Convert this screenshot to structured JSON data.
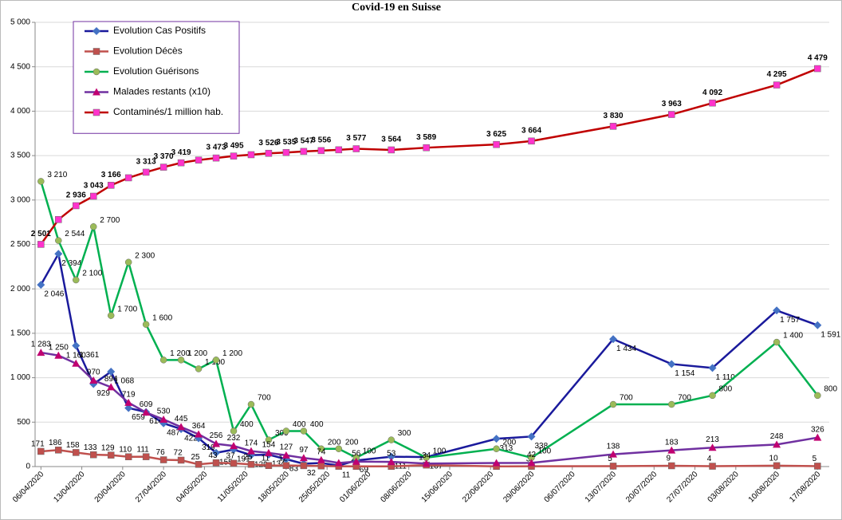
{
  "chart_data": {
    "type": "line",
    "title": "Covid-19 en Suisse",
    "x": [
      "06/04/2020",
      "09/04/2020",
      "12/04/2020",
      "15/04/2020",
      "18/04/2020",
      "21/04/2020",
      "24/04/2020",
      "27/04/2020",
      "30/04/2020",
      "03/05/2020",
      "06/05/2020",
      "09/05/2020",
      "12/05/2020",
      "15/05/2020",
      "18/05/2020",
      "21/05/2020",
      "24/05/2020",
      "27/05/2020",
      "30/05/2020",
      "05/06/2020",
      "11/06/2020",
      "23/06/2020",
      "29/06/2020",
      "13/07/2020",
      "23/07/2020",
      "30/07/2020",
      "10/08/2020",
      "17/08/2020"
    ],
    "series": [
      {
        "name": "Evolution Cas Positifs",
        "color": "#1a1a9c",
        "marker": "diamond",
        "marker_color": "#4472c4",
        "values": [
          2046,
          2394,
          1361,
          929,
          1068,
          659,
          614,
          487,
          422,
          319,
          155,
          191,
          129,
          134,
          83,
          32,
          40,
          11,
          69,
          111,
          107,
          313,
          338,
          1434,
          1154,
          1110,
          1757,
          1591
        ],
        "value_labels": [
          "2 046",
          "2 394",
          "1 361",
          "929",
          "1 068",
          "659",
          "614",
          "487",
          "422",
          "319",
          "155",
          "191",
          "129",
          "134",
          "83",
          "32",
          null,
          "11",
          "69",
          "111",
          "107",
          "313",
          "338",
          "1 434",
          "1 154",
          "1 110",
          "1 757",
          "1 591"
        ]
      },
      {
        "name": "Evolution Décès",
        "color": "#c0504d",
        "marker": "square",
        "marker_color": "#c0504d",
        "values": [
          171,
          186,
          158,
          133,
          129,
          110,
          111,
          76,
          72,
          25,
          43,
          37,
          25,
          11,
          12,
          10,
          7,
          3,
          2,
          2,
          17,
          2,
          3,
          5,
          9,
          4,
          10,
          5
        ],
        "value_labels": [
          "171",
          "186",
          "158",
          "133",
          "129",
          "110",
          "111",
          "76",
          "72",
          "25",
          "43",
          "37",
          "25",
          "11",
          "12",
          null,
          null,
          null,
          "2",
          null,
          "17",
          null,
          "3",
          "5",
          "9",
          "4",
          "10",
          "5"
        ]
      },
      {
        "name": "Evolution Guérisons",
        "color": "#00b050",
        "marker": "circle",
        "marker_color": "#9bbb59",
        "values": [
          3210,
          2544,
          2100,
          2700,
          1700,
          2300,
          1600,
          1200,
          1200,
          1100,
          1200,
          400,
          700,
          300,
          400,
          400,
          200,
          200,
          100,
          300,
          100,
          200,
          100,
          700,
          700,
          800,
          1400,
          800
        ],
        "value_labels": [
          "3 210",
          "2 544",
          "2 100",
          "2 700",
          "1 700",
          "2 300",
          "1 600",
          "1 200",
          "1 200",
          "1 100",
          "1 200",
          "400",
          "700",
          "300",
          "400",
          "400",
          "200",
          "200",
          "100",
          "300",
          "100",
          "200",
          "100",
          "700",
          "700",
          "800",
          "1 400",
          "800"
        ]
      },
      {
        "name": "Malades restants (x10)",
        "color": "#7030a0",
        "marker": "triangle",
        "marker_color": "#c00070",
        "label_color": "#c00000",
        "values": [
          1283,
          1250,
          1160,
          970,
          894,
          719,
          609,
          530,
          445,
          364,
          256,
          232,
          174,
          154,
          127,
          97,
          74,
          40,
          56,
          53,
          34,
          40,
          42,
          138,
          183,
          213,
          248,
          326
        ],
        "value_labels": [
          "1 283",
          "1 250",
          "1 160",
          "970",
          "894",
          "719",
          "609",
          "530",
          "445",
          "364",
          "256",
          "232",
          "174",
          "154",
          "127",
          "97",
          "74",
          null,
          "56",
          "53",
          "34",
          null,
          "42",
          "138",
          "183",
          "213",
          "248",
          "326"
        ]
      },
      {
        "name": "Contaminés/1 million hab.",
        "color": "#c00000",
        "marker": "square",
        "marker_color": "#ff33cc",
        "label_bold": true,
        "values": [
          2501,
          2780,
          2936,
          3043,
          3166,
          3250,
          3313,
          3370,
          3419,
          3450,
          3473,
          3495,
          3510,
          3526,
          3535,
          3547,
          3556,
          3565,
          3577,
          3564,
          3589,
          3625,
          3664,
          3830,
          3963,
          4092,
          4295,
          4479
        ],
        "value_labels": [
          "2 501",
          null,
          "2 936",
          "3 043",
          "3 166",
          null,
          "3 313",
          "3 370",
          "3 419",
          null,
          "3 473",
          "3 495",
          null,
          "3 526",
          "3 535",
          "3 547",
          "3 556",
          null,
          "3 577",
          "3 564",
          "3 589",
          "3 625",
          "3 664",
          "3 830",
          "3 963",
          "4 092",
          "4 295",
          "4 479"
        ]
      }
    ],
    "xlim": [
      "05/04/2020",
      "19/08/2020"
    ],
    "xticks": [
      "06/04/2020",
      "13/04/2020",
      "20/04/2020",
      "27/04/2020",
      "04/05/2020",
      "11/05/2020",
      "18/05/2020",
      "25/05/2020",
      "01/06/2020",
      "08/06/2020",
      "15/06/2020",
      "22/06/2020",
      "29/06/2020",
      "06/07/2020",
      "13/07/2020",
      "20/07/2020",
      "27/07/2020",
      "03/08/2020",
      "10/08/2020",
      "17/08/2020"
    ],
    "ylim": [
      0,
      5000
    ],
    "yticks": [
      0,
      500,
      {
        "value": 1000,
        "label": "1 000"
      },
      {
        "value": 1500,
        "label": "1 500"
      },
      {
        "value": 2000,
        "label": "2 000"
      },
      {
        "value": 2500,
        "label": "2 500"
      },
      {
        "value": 3000,
        "label": "3 000"
      },
      {
        "value": 3500,
        "label": "3 500"
      },
      {
        "value": 4000,
        "label": "4 000"
      },
      {
        "value": 4500,
        "label": "4 500"
      },
      {
        "value": 5000,
        "label": "5 000"
      }
    ],
    "grid": true,
    "legend": "upper left"
  }
}
